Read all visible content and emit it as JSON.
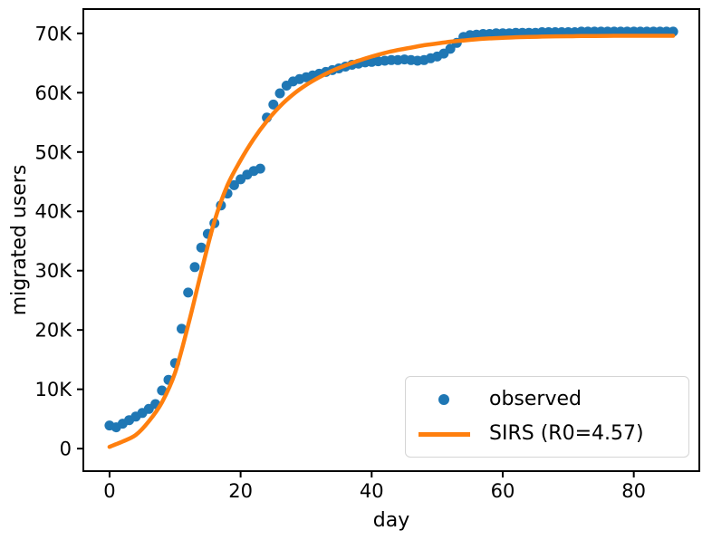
{
  "chart_data": {
    "type": "scatter",
    "title": "",
    "xlabel": "day",
    "ylabel": "migrated users",
    "xlim": [
      -4,
      90
    ],
    "ylim": [
      -3800,
      74100
    ],
    "grid": false,
    "x_ticks": {
      "values": [
        0,
        20,
        40,
        60,
        80
      ],
      "labels": [
        "0",
        "20",
        "40",
        "60",
        "80"
      ]
    },
    "y_ticks": {
      "values": [
        0,
        10000,
        20000,
        30000,
        40000,
        50000,
        60000,
        70000
      ],
      "labels": [
        "0",
        "10K",
        "20K",
        "30K",
        "40K",
        "50K",
        "60K",
        "70K"
      ]
    },
    "legend": {
      "position": "lower right",
      "entries": [
        {
          "label": "observed",
          "marker": "dot",
          "color": "#1f77b4"
        },
        {
          "label": "SIRS (R0=4.57)",
          "marker": "line",
          "color": "#ff7f0e"
        }
      ]
    },
    "series": [
      {
        "name": "observed",
        "type": "scatter",
        "color": "#1f77b4",
        "marker_radius": 5.5,
        "x": [
          0,
          1,
          2,
          3,
          4,
          5,
          6,
          7,
          8,
          9,
          10,
          11,
          12,
          13,
          14,
          15,
          16,
          17,
          18,
          19,
          20,
          21,
          22,
          23,
          24,
          25,
          26,
          27,
          28,
          29,
          30,
          31,
          32,
          33,
          34,
          35,
          36,
          37,
          38,
          39,
          40,
          41,
          42,
          43,
          44,
          45,
          46,
          47,
          48,
          49,
          50,
          51,
          52,
          53,
          54,
          55,
          56,
          57,
          58,
          59,
          60,
          61,
          62,
          63,
          64,
          65,
          66,
          67,
          68,
          69,
          70,
          71,
          72,
          73,
          74,
          75,
          76,
          77,
          78,
          79,
          80,
          81,
          82,
          83,
          84,
          85,
          86
        ],
        "y": [
          3900,
          3600,
          4200,
          4800,
          5400,
          6000,
          6700,
          7500,
          9800,
          11600,
          14400,
          20200,
          26300,
          30600,
          33900,
          36200,
          38000,
          41000,
          43000,
          44400,
          45400,
          46200,
          46800,
          47200,
          55800,
          58000,
          59900,
          61200,
          61900,
          62300,
          62600,
          62900,
          63200,
          63500,
          63800,
          64100,
          64400,
          64700,
          64900,
          65100,
          65200,
          65300,
          65400,
          65500,
          65500,
          65600,
          65500,
          65400,
          65500,
          65800,
          66100,
          66600,
          67400,
          68400,
          69400,
          69700,
          69800,
          69900,
          69900,
          70000,
          70000,
          70000,
          70100,
          70100,
          70100,
          70100,
          70200,
          70200,
          70200,
          70200,
          70200,
          70200,
          70300,
          70300,
          70300,
          70300,
          70300,
          70300,
          70300,
          70300,
          70300,
          70300,
          70300,
          70300,
          70300,
          70300,
          70300
        ]
      },
      {
        "name": "SIRS (R0=4.57)",
        "type": "line",
        "color": "#ff7f0e",
        "line_width": 4.5,
        "x": [
          0,
          2,
          4,
          6,
          8,
          10,
          12,
          14,
          16,
          18,
          20,
          22,
          24,
          26,
          28,
          30,
          32,
          34,
          36,
          38,
          40,
          42,
          44,
          46,
          48,
          50,
          52,
          54,
          56,
          58,
          60,
          62,
          64,
          66,
          68,
          70,
          72,
          74,
          76,
          78,
          80,
          82,
          84,
          86
        ],
        "y": [
          300,
          1200,
          2300,
          4600,
          7800,
          12800,
          20800,
          29800,
          38300,
          44400,
          48600,
          52200,
          55200,
          57700,
          59700,
          61300,
          62600,
          63700,
          64600,
          65400,
          66100,
          66700,
          67200,
          67600,
          68000,
          68300,
          68600,
          68800,
          69000,
          69150,
          69250,
          69350,
          69400,
          69450,
          69500,
          69520,
          69550,
          69570,
          69580,
          69600,
          69600,
          69600,
          69600,
          69600
        ]
      }
    ]
  }
}
